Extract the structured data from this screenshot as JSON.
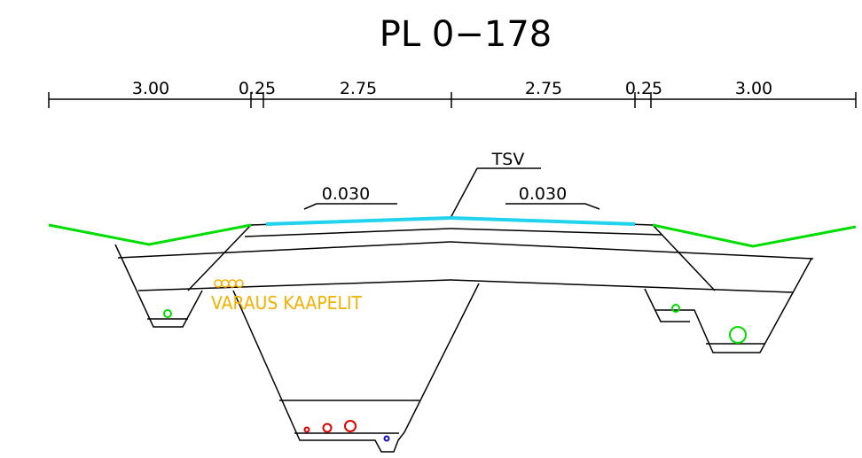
{
  "title": "PL 0−178",
  "dimensions": {
    "segments": [
      "3.00",
      "0.25",
      "2.75",
      "2.75",
      "0.25",
      "3.00"
    ]
  },
  "annotations": {
    "surface_label": "TSV",
    "slope_left": "0.030",
    "slope_right": "0.030",
    "cable_reservation": "VARAUS KAAPELIT"
  },
  "colors": {
    "linework": "#000000",
    "slope_surface": "#00dd00",
    "pavement_top": "#22d3ee",
    "cable_reservation": "#f5b000",
    "pipe_red": "#e00000",
    "pipe_blue": "#1010d0",
    "pipe_green": "#00dd00"
  }
}
